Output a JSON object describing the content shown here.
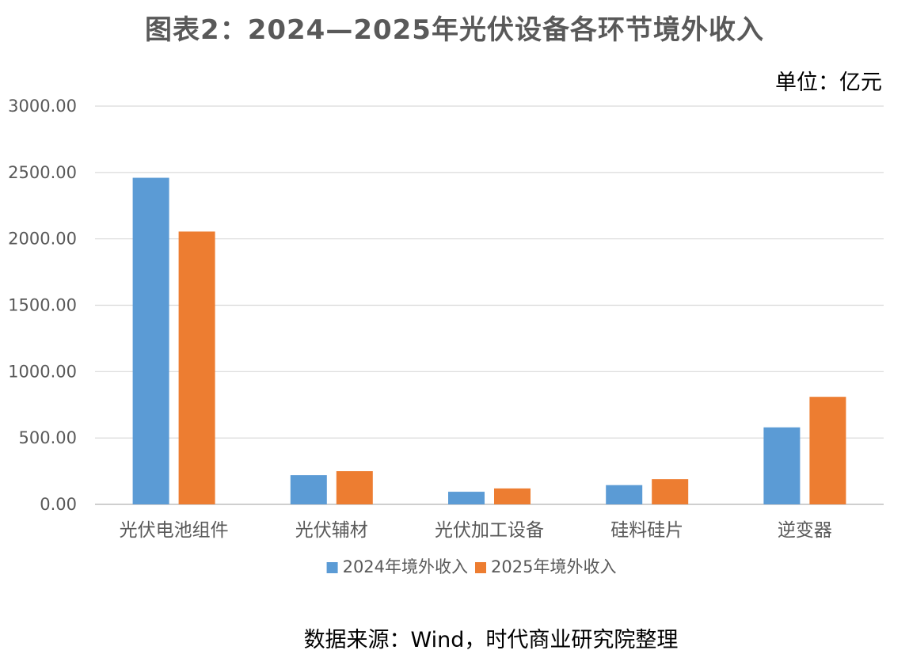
{
  "chart_data": {
    "type": "bar",
    "title": "图表2：2024—2025年光伏设备各环节境外收入",
    "unit_label": "单位：亿元",
    "source": "数据来源：Wind，时代商业研究院整理",
    "categories": [
      "光伏电池组件",
      "光伏辅材",
      "光伏加工设备",
      "硅料硅片",
      "逆变器"
    ],
    "series": [
      {
        "name": "2024年境外收入",
        "color": "#5B9BD5",
        "values": [
          2460,
          220,
          95,
          145,
          580
        ]
      },
      {
        "name": "2025年境外收入",
        "color": "#ED7D31",
        "values": [
          2055,
          250,
          120,
          190,
          810
        ]
      }
    ],
    "y_ticks": [
      "0.00",
      "500.00",
      "1000.00",
      "1500.00",
      "2000.00",
      "2500.00",
      "3000.00"
    ],
    "ylim": [
      0,
      3000
    ],
    "grid": true,
    "legend_position": "bottom"
  }
}
